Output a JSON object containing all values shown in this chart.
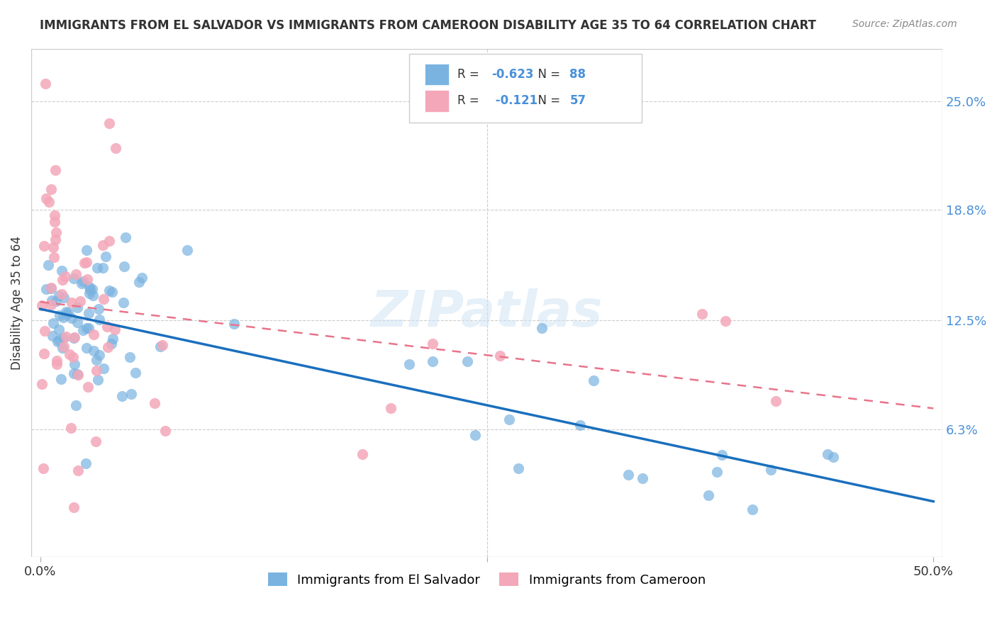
{
  "title": "IMMIGRANTS FROM EL SALVADOR VS IMMIGRANTS FROM CAMEROON DISABILITY AGE 35 TO 64 CORRELATION CHART",
  "source_text": "Source: ZipAtlas.com",
  "ylabel": "Disability Age 35 to 64",
  "watermark": "ZIPatlas",
  "background_color": "#ffffff",
  "el_salvador_color": "#7ab3e0",
  "cameroon_color": "#f4a7b9",
  "el_salvador_line_color": "#1a6fbd",
  "cameroon_line_color": "#e8748a",
  "grid_color": "#cccccc",
  "R_el_salvador": -0.623,
  "N_el_salvador": 88,
  "R_cameroon": -0.121,
  "N_cameroon": 57,
  "legend_label_1": "Immigrants from El Salvador",
  "legend_label_2": "Immigrants from Cameroon",
  "ytick_right_labels": [
    "25.0%",
    "18.8%",
    "12.5%",
    "6.3%"
  ],
  "ytick_right_values": [
    0.25,
    0.188,
    0.125,
    0.063
  ]
}
